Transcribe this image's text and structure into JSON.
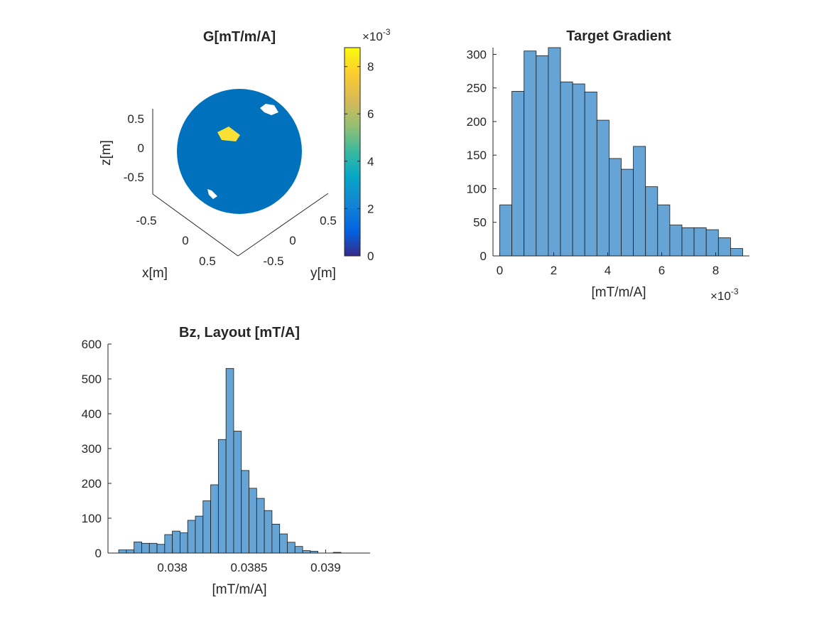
{
  "colors": {
    "bar_fill": "#66a4d5",
    "bar_edge": "#1a1a1a",
    "sphere": "#0072bd",
    "highlight": "#f9e035",
    "axis": "#262626"
  },
  "chart_data": [
    {
      "type": "surface3d",
      "title": "G[mT/m/A]",
      "xlabel": "x[m]",
      "ylabel": "y[m]",
      "zlabel": "z[m]",
      "x_ticks": [
        "-0.5",
        "0",
        "0.5"
      ],
      "y_ticks": [
        "-0.5",
        "0",
        "0.5"
      ],
      "z_ticks": [
        "0.5",
        "0",
        "-0.5"
      ],
      "colorbar": {
        "colormap": "parula",
        "range": [
          0,
          0.0088
        ],
        "ticks": [
          "0",
          "2",
          "4",
          "6",
          "8"
        ],
        "exponent_label": "×10",
        "exponent_power": "-3"
      }
    },
    {
      "type": "bar",
      "title": "Target Gradient",
      "xlabel": "[mT/m/A]",
      "x_exponent_label": "×10",
      "x_exponent_power": "-3",
      "xlim": [
        -0.25,
        9.25
      ],
      "ylim": [
        0,
        310
      ],
      "x_ticks": [
        0,
        2,
        4,
        6,
        8
      ],
      "x_tick_labels": [
        "0",
        "2",
        "4",
        "6",
        "8"
      ],
      "y_ticks": [
        0,
        50,
        100,
        150,
        200,
        250,
        300
      ],
      "y_tick_labels": [
        "0",
        "50",
        "100",
        "150",
        "200",
        "250",
        "300"
      ],
      "bin_edges": [
        0,
        0.45,
        0.9,
        1.35,
        1.8,
        2.25,
        2.7,
        3.15,
        3.6,
        4.05,
        4.5,
        4.95,
        5.4,
        5.85,
        6.3,
        6.75,
        7.2,
        7.65,
        8.1,
        8.55,
        9.0
      ],
      "values": [
        76,
        245,
        305,
        298,
        310,
        259,
        256,
        244,
        202,
        145,
        129,
        163,
        103,
        76,
        46,
        42,
        42,
        39,
        27,
        11
      ]
    },
    {
      "type": "bar",
      "title": "Bz, Layout [mT/A]",
      "xlabel": "[mT/m/A]",
      "xlim": [
        0.03758,
        0.03929
      ],
      "ylim": [
        0,
        600
      ],
      "x_ticks": [
        0.038,
        0.0385,
        0.039
      ],
      "x_tick_labels": [
        "0.038",
        "0.0385",
        "0.039"
      ],
      "y_ticks": [
        0,
        100,
        200,
        300,
        400,
        500,
        600
      ],
      "y_tick_labels": [
        "0",
        "100",
        "200",
        "300",
        "400",
        "500",
        "600"
      ],
      "bin_start": 0.03765,
      "bin_width": 5e-05,
      "values": [
        9,
        9,
        32,
        28,
        28,
        25,
        53,
        63,
        58,
        94,
        106,
        150,
        196,
        326,
        530,
        350,
        237,
        186,
        157,
        122,
        83,
        55,
        31,
        19,
        7,
        5,
        0,
        0,
        2,
        0
      ]
    }
  ]
}
